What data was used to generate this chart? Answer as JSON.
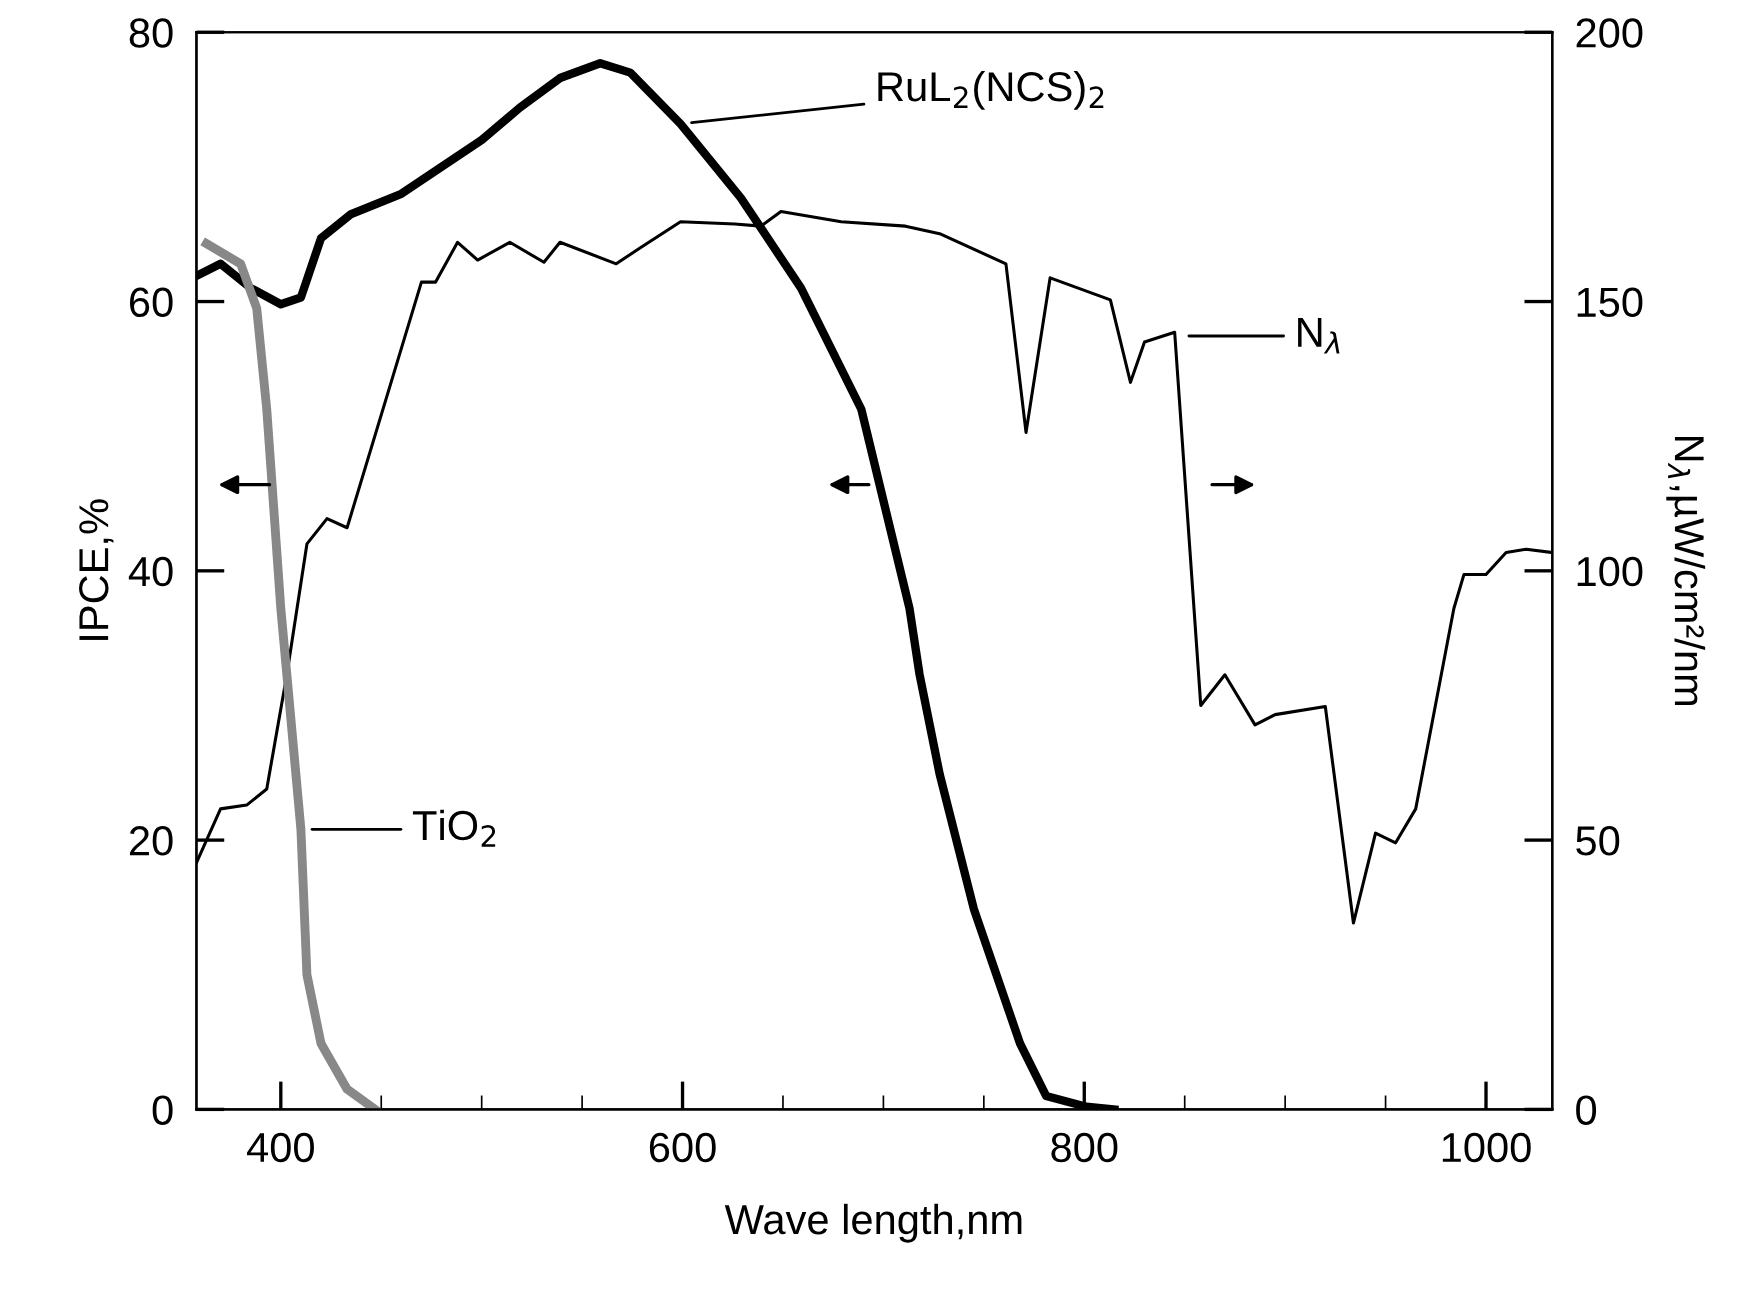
{
  "chart_data": {
    "type": "line",
    "xlabel": "Wave length,nm",
    "ylabel": "IPCE,%",
    "y2label": "N$_{λ}$,µW/cm²/nm",
    "series": [
      {
        "color": "#000000",
        "x": [
          358,
          370,
          385,
          400,
          410,
          420,
          435,
          460,
          500,
          519,
          539,
          559,
          574,
          599,
          629,
          659,
          689,
          713,
          718,
          728,
          745,
          768,
          781,
          801,
          815
        ],
        "values": [
          61.9,
          62.8,
          61,
          59.8,
          60.3,
          64.7,
          66.5,
          68,
          72,
          74.4,
          76.6,
          77.7,
          77,
          73.2,
          67.7,
          61,
          52,
          37.2,
          32.3,
          24.9,
          14.9,
          4.9,
          1,
          0.2,
          0
        ]
      },
      {
        "color": "#888888",
        "x": [
          363,
          380,
          388,
          393,
          400,
          403,
          410,
          413,
          420,
          433,
          447
        ],
        "values": [
          64.3,
          62.8,
          59.5,
          52,
          37.2,
          32.3,
          20.8,
          10,
          4.9,
          1.5,
          0
        ]
      },
      {
        "color": "#000000",
        "axis": "y2",
        "x": [
          358,
          370,
          383,
          393,
          397,
          403,
          413,
          423,
          433,
          470,
          477,
          488,
          498,
          514,
          531,
          539,
          567,
          579,
          599,
          626,
          639,
          649,
          679,
          711,
          728,
          761,
          771,
          783,
          813,
          823,
          830,
          845,
          858,
          870,
          885,
          895,
          920,
          934,
          945,
          955,
          965,
          984,
          989,
          1000,
          1010,
          1020,
          1033
        ],
        "values": [
          45.8,
          55.8,
          56.5,
          59.5,
          68,
          80.7,
          105,
          109.7,
          108,
          153.6,
          153.6,
          161,
          157.7,
          161,
          157.3,
          161,
          157,
          160,
          164.8,
          164.4,
          164,
          166.7,
          164.8,
          164,
          162.6,
          157,
          125.7,
          154.4,
          150.3,
          135,
          142.5,
          144.3,
          75,
          80.7,
          71.4,
          73.3,
          74.8,
          34.6,
          51.3,
          49.5,
          55.8,
          93,
          99.3,
          99.3,
          103.4,
          104,
          103.4
        ]
      }
    ],
    "annotations": [
      {
        "text": "RuL$_{2}$(NCS)$_{2}$",
        "x": 599,
        "y": 73.2
      },
      "N$_{λ}$",
      {
        "text": "TiO$_{2}$",
        "x": 410,
        "y": 20.8
      }
    ],
    "xlim": [
      358,
      1033
    ],
    "xticks": [
      400,
      {
        "value": 450,
        "label": null
      },
      {
        "value": 500,
        "label": null
      },
      {
        "value": 550,
        "label": null
      },
      600,
      {
        "value": 650,
        "label": null
      },
      {
        "value": 700,
        "label": null
      },
      {
        "value": 750,
        "label": null
      },
      800,
      {
        "value": 850,
        "label": null
      },
      {
        "value": 900,
        "label": null
      },
      {
        "value": 950,
        "label": null
      },
      1000
    ],
    "ylim": [
      0,
      80
    ],
    "yticks": [
      0,
      20,
      40,
      60,
      80
    ],
    "y2lim": [
      0,
      200
    ],
    "y2ticks": [
      0,
      50,
      100,
      150,
      200
    ],
    "grid": false,
    "legend": false,
    "marker": "none",
    "line_style": "solid"
  }
}
